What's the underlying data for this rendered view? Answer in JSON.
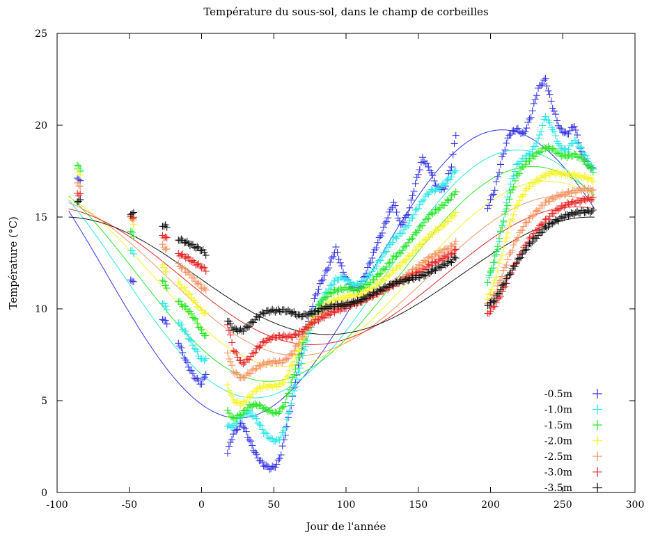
{
  "chart_data": {
    "type": "scatter",
    "title": "Température du sous-sol, dans le champ de corbeilles",
    "xlabel": "Jour de l'année",
    "ylabel": "Température (°C)",
    "xlim": [
      -100,
      300
    ],
    "ylim": [
      0,
      25
    ],
    "xticks": [
      -100,
      -50,
      0,
      50,
      100,
      150,
      200,
      250,
      300
    ],
    "yticks": [
      0,
      5,
      10,
      15,
      20,
      25
    ],
    "grid": false,
    "legend_position": "bottom-right",
    "segments": [
      [
        -86,
        -84
      ],
      [
        -49,
        -47
      ],
      [
        -27,
        -24
      ],
      [
        -16,
        3
      ],
      [
        18,
        176
      ],
      [
        198,
        271
      ]
    ],
    "series": [
      {
        "name": "-0.5m",
        "color": "#3232e6",
        "x": [
          -86,
          -48,
          -25,
          -16,
          -10,
          -5,
          0,
          3,
          18,
          22,
          28,
          33,
          38,
          43,
          48,
          52,
          55,
          58,
          63,
          68,
          73,
          78,
          83,
          88,
          93,
          98,
          103,
          108,
          113,
          118,
          123,
          128,
          133,
          138,
          143,
          148,
          153,
          158,
          163,
          168,
          173,
          176,
          198,
          203,
          208,
          213,
          218,
          223,
          228,
          233,
          238,
          243,
          248,
          253,
          258,
          263,
          268,
          271
        ],
        "y": [
          17.2,
          11.5,
          9.3,
          8.2,
          7.0,
          6.3,
          5.9,
          6.5,
          2.2,
          3.2,
          3.8,
          2.9,
          2.0,
          1.5,
          1.3,
          1.5,
          2.1,
          3.2,
          5.2,
          7.3,
          9.0,
          10.5,
          11.5,
          12.3,
          13.3,
          12.0,
          11.2,
          11.0,
          11.8,
          12.8,
          13.8,
          14.8,
          15.8,
          14.5,
          15.2,
          16.8,
          18.2,
          17.6,
          16.6,
          16.5,
          17.8,
          19.5,
          15.5,
          16.5,
          18.2,
          19.5,
          19.8,
          19.5,
          20.5,
          22.0,
          22.5,
          21.0,
          19.8,
          19.5,
          20.0,
          18.5,
          17.8,
          17.6
        ],
        "fit_mean": 11.9,
        "fit_amp": 7.85,
        "fit_phase": 208
      },
      {
        "name": "-1.0m",
        "color": "#28e6e6",
        "x": [
          -86,
          -48,
          -25,
          -16,
          -10,
          -5,
          0,
          3,
          18,
          22,
          28,
          33,
          38,
          43,
          48,
          52,
          55,
          58,
          63,
          68,
          73,
          78,
          83,
          88,
          93,
          98,
          103,
          108,
          113,
          118,
          123,
          128,
          133,
          138,
          143,
          148,
          153,
          158,
          163,
          168,
          173,
          176,
          198,
          203,
          208,
          213,
          218,
          223,
          228,
          233,
          238,
          243,
          248,
          253,
          258,
          263,
          268,
          271
        ],
        "y": [
          17.7,
          13.1,
          10.1,
          9.3,
          8.6,
          7.9,
          7.2,
          7.3,
          3.6,
          3.6,
          4.2,
          4.4,
          4.0,
          3.3,
          2.9,
          2.8,
          3.0,
          3.6,
          5.2,
          6.8,
          8.3,
          9.6,
          10.5,
          11.1,
          11.6,
          11.7,
          11.4,
          11.3,
          11.6,
          12.0,
          12.6,
          13.2,
          13.8,
          14.1,
          14.6,
          15.3,
          15.9,
          16.4,
          16.5,
          16.8,
          17.2,
          17.6,
          11.5,
          12.5,
          14.5,
          16.5,
          17.8,
          18.2,
          18.5,
          19.2,
          20.5,
          19.8,
          18.8,
          18.6,
          19.2,
          18.7,
          18.0,
          17.6
        ],
        "fit_mean": 11.9,
        "fit_amp": 6.75,
        "fit_phase": 219
      },
      {
        "name": "-1.5m",
        "color": "#28e628",
        "x": [
          -86,
          -48,
          -25,
          -16,
          -10,
          -5,
          0,
          3,
          18,
          22,
          28,
          33,
          38,
          43,
          48,
          52,
          55,
          58,
          63,
          68,
          73,
          78,
          83,
          88,
          93,
          98,
          103,
          108,
          113,
          118,
          123,
          128,
          133,
          138,
          143,
          148,
          153,
          158,
          163,
          168,
          173,
          176,
          198,
          203,
          208,
          213,
          218,
          223,
          228,
          233,
          238,
          243,
          248,
          253,
          258,
          263,
          268,
          271
        ],
        "y": [
          17.8,
          14.1,
          11.3,
          10.4,
          10.0,
          9.5,
          8.8,
          8.5,
          4.4,
          4.0,
          4.3,
          4.7,
          4.8,
          4.6,
          4.4,
          4.3,
          4.5,
          4.9,
          6.2,
          7.6,
          8.8,
          9.8,
          10.4,
          10.8,
          11.0,
          11.1,
          11.1,
          11.0,
          11.2,
          11.5,
          11.9,
          12.3,
          12.8,
          13.1,
          13.6,
          14.1,
          14.6,
          15.1,
          15.4,
          15.7,
          16.1,
          16.4,
          11.5,
          12.8,
          14.5,
          16.0,
          17.2,
          17.8,
          18.2,
          18.5,
          18.8,
          18.7,
          18.4,
          18.3,
          18.4,
          18.2,
          17.8,
          17.5
        ],
        "fit_mean": 11.9,
        "fit_amp": 5.85,
        "fit_phase": 229
      },
      {
        "name": "-2.0m",
        "color": "#f5f528",
        "x": [
          -86,
          -48,
          -25,
          -16,
          -10,
          -5,
          0,
          3,
          18,
          22,
          28,
          33,
          38,
          43,
          48,
          52,
          55,
          58,
          63,
          68,
          73,
          78,
          83,
          88,
          93,
          98,
          103,
          108,
          113,
          118,
          123,
          128,
          133,
          138,
          143,
          148,
          153,
          158,
          163,
          168,
          173,
          176,
          198,
          203,
          208,
          213,
          218,
          223,
          228,
          233,
          238,
          243,
          248,
          253,
          258,
          263,
          268,
          271
        ],
        "y": [
          17.5,
          14.8,
          12.1,
          11.4,
          10.9,
          10.4,
          9.9,
          9.7,
          5.8,
          5.0,
          4.8,
          5.2,
          5.6,
          5.8,
          5.8,
          5.8,
          5.9,
          6.1,
          7.0,
          8.0,
          8.9,
          9.6,
          10.0,
          10.3,
          10.5,
          10.6,
          10.7,
          10.7,
          10.9,
          11.1,
          11.4,
          11.7,
          12.1,
          12.4,
          12.8,
          13.2,
          13.6,
          14.0,
          14.3,
          14.6,
          15.0,
          15.2,
          10.5,
          11.5,
          13.0,
          14.5,
          15.6,
          16.3,
          16.8,
          17.0,
          17.3,
          17.4,
          17.4,
          17.3,
          17.3,
          17.2,
          17.1,
          17.0
        ],
        "fit_mean": 11.9,
        "fit_amp": 5.05,
        "fit_phase": 239
      },
      {
        "name": "-2.5m",
        "color": "#f59664",
        "x": [
          -86,
          -48,
          -25,
          -16,
          -10,
          -5,
          0,
          3,
          18,
          22,
          28,
          33,
          38,
          43,
          48,
          52,
          55,
          58,
          63,
          68,
          73,
          78,
          83,
          88,
          93,
          98,
          103,
          108,
          113,
          118,
          123,
          128,
          133,
          138,
          143,
          148,
          153,
          158,
          163,
          168,
          173,
          176,
          198,
          203,
          208,
          213,
          218,
          223,
          228,
          233,
          238,
          243,
          248,
          253,
          258,
          263,
          268,
          271
        ],
        "y": [
          16.8,
          15.0,
          13.3,
          12.4,
          12.0,
          11.6,
          11.2,
          11.0,
          7.6,
          6.6,
          6.2,
          6.5,
          6.8,
          7.0,
          7.1,
          7.1,
          7.1,
          7.2,
          7.6,
          8.3,
          8.9,
          9.4,
          9.7,
          9.9,
          10.1,
          10.2,
          10.3,
          10.4,
          10.5,
          10.7,
          10.9,
          11.1,
          11.4,
          11.6,
          11.9,
          12.2,
          12.5,
          12.8,
          13.0,
          13.2,
          13.4,
          13.6,
          10.2,
          10.8,
          11.8,
          12.9,
          13.8,
          14.5,
          15.0,
          15.4,
          15.8,
          16.0,
          16.2,
          16.3,
          16.4,
          16.5,
          16.5,
          16.5
        ],
        "fit_mean": 11.8,
        "fit_amp": 4.35,
        "fit_phase": 249
      },
      {
        "name": "-3.0m",
        "color": "#e62828",
        "x": [
          -86,
          -48,
          -25,
          -16,
          -10,
          -5,
          0,
          3,
          18,
          22,
          28,
          33,
          38,
          43,
          48,
          52,
          55,
          58,
          63,
          68,
          73,
          78,
          83,
          88,
          93,
          98,
          103,
          108,
          113,
          118,
          123,
          128,
          133,
          138,
          143,
          148,
          153,
          158,
          163,
          168,
          173,
          176,
          198,
          203,
          208,
          213,
          218,
          223,
          228,
          233,
          238,
          243,
          248,
          253,
          258,
          263,
          268,
          271
        ],
        "y": [
          16.3,
          15.0,
          13.9,
          13.0,
          12.8,
          12.5,
          12.3,
          12.1,
          9.2,
          7.8,
          7.0,
          7.3,
          7.8,
          8.2,
          8.4,
          8.5,
          8.5,
          8.5,
          8.5,
          8.7,
          9.0,
          9.3,
          9.5,
          9.7,
          9.9,
          10.0,
          10.2,
          10.3,
          10.5,
          10.7,
          10.9,
          11.1,
          11.3,
          11.5,
          11.7,
          11.9,
          12.1,
          12.4,
          12.6,
          12.8,
          13.0,
          13.2,
          9.7,
          10.2,
          10.9,
          11.8,
          12.6,
          13.3,
          13.9,
          14.4,
          14.8,
          15.2,
          15.5,
          15.7,
          15.8,
          15.9,
          16.0,
          16.0
        ],
        "fit_mean": 11.8,
        "fit_amp": 3.75,
        "fit_phase": 259
      },
      {
        "name": "-3.5m",
        "color": "#141414",
        "x": [
          -86,
          -48,
          -25,
          -16,
          -10,
          -5,
          0,
          3,
          18,
          22,
          28,
          33,
          38,
          43,
          48,
          52,
          55,
          58,
          63,
          68,
          73,
          78,
          83,
          88,
          93,
          98,
          103,
          108,
          113,
          118,
          123,
          128,
          133,
          138,
          143,
          148,
          153,
          158,
          163,
          168,
          173,
          176,
          198,
          203,
          208,
          213,
          218,
          223,
          228,
          233,
          238,
          243,
          248,
          253,
          258,
          263,
          268,
          271
        ],
        "y": [
          15.9,
          15.2,
          14.5,
          13.8,
          13.6,
          13.4,
          13.2,
          13.0,
          9.4,
          8.9,
          8.8,
          9.1,
          9.5,
          9.8,
          9.9,
          9.9,
          9.9,
          9.9,
          9.8,
          9.6,
          9.7,
          9.8,
          10.0,
          10.1,
          10.2,
          10.2,
          10.3,
          10.4,
          10.6,
          10.8,
          11.0,
          11.2,
          11.4,
          11.5,
          11.6,
          11.7,
          11.8,
          12.0,
          12.2,
          12.4,
          12.6,
          12.8,
          10.2,
          10.5,
          11.2,
          11.9,
          12.5,
          13.1,
          13.6,
          14.0,
          14.4,
          14.7,
          14.9,
          15.1,
          15.2,
          15.3,
          15.3,
          15.3
        ],
        "fit_mean": 11.8,
        "fit_amp": 3.2,
        "fit_phase": 270
      }
    ]
  }
}
